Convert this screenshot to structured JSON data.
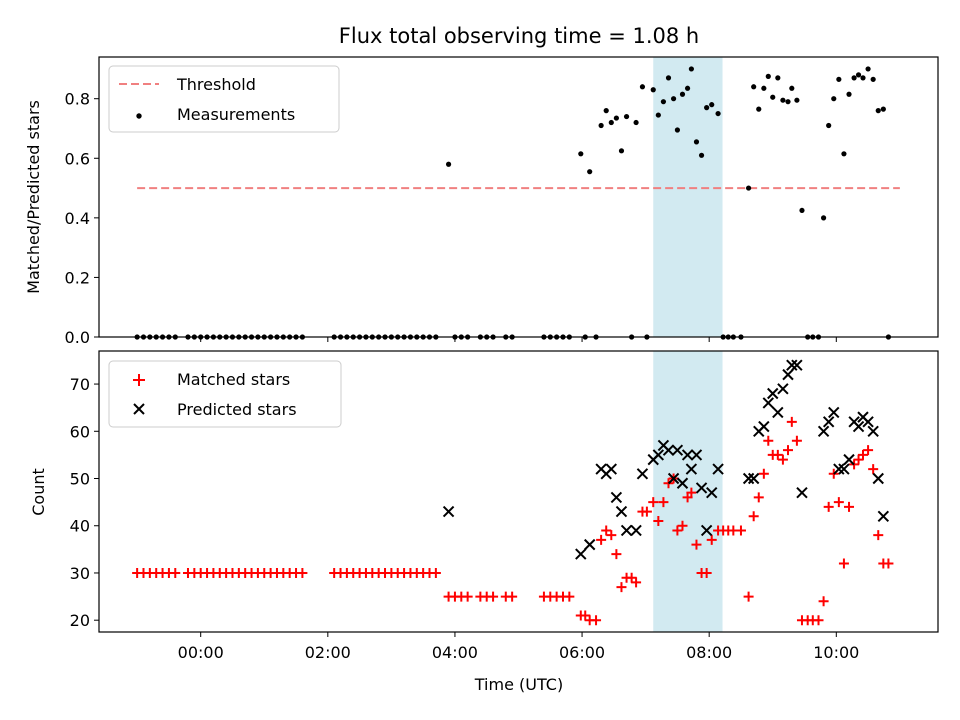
{
  "chart_data": {
    "title": "Flux total observing time = 1.08 h",
    "xlabel": "Time (UTC)",
    "x_unit": "hours UTC",
    "x_ticks": [
      {
        "value": 0,
        "label": "00:00"
      },
      {
        "value": 2,
        "label": "02:00"
      },
      {
        "value": 4,
        "label": "04:00"
      },
      {
        "value": 6,
        "label": "06:00"
      },
      {
        "value": 8,
        "label": "08:00"
      },
      {
        "value": 10,
        "label": "10:00"
      }
    ],
    "xlim": [
      -1.6,
      11.6
    ],
    "shaded_interval": [
      7.12,
      8.21
    ],
    "shaded_color": "#add8e6",
    "top": {
      "type": "scatter",
      "ylabel": "Matched/Predicted stars",
      "ylim": [
        0,
        0.94
      ],
      "y_ticks": [
        {
          "value": 0,
          "label": "0.0"
        },
        {
          "value": 0.2,
          "label": "0.2"
        },
        {
          "value": 0.4,
          "label": "0.4"
        },
        {
          "value": 0.6,
          "label": "0.6"
        },
        {
          "value": 0.8,
          "label": "0.8"
        }
      ],
      "threshold": {
        "name": "Threshold",
        "value": 0.5,
        "x_range": [
          -1.0,
          11.0
        ],
        "color": "#f08080"
      },
      "measurements": {
        "name": "Measurements",
        "color": "#000000",
        "points": [
          [
            -1.0,
            0
          ],
          [
            -0.9,
            0
          ],
          [
            -0.8,
            0
          ],
          [
            -0.7,
            0
          ],
          [
            -0.6,
            0
          ],
          [
            -0.5,
            0
          ],
          [
            -0.4,
            0
          ],
          [
            -0.2,
            0
          ],
          [
            -0.1,
            0
          ],
          [
            0.0,
            0
          ],
          [
            0.1,
            0
          ],
          [
            0.2,
            0
          ],
          [
            0.3,
            0
          ],
          [
            0.4,
            0
          ],
          [
            0.5,
            0
          ],
          [
            0.6,
            0
          ],
          [
            0.7,
            0
          ],
          [
            0.8,
            0
          ],
          [
            0.9,
            0
          ],
          [
            1.0,
            0
          ],
          [
            1.1,
            0
          ],
          [
            1.2,
            0
          ],
          [
            1.3,
            0
          ],
          [
            1.4,
            0
          ],
          [
            1.5,
            0
          ],
          [
            1.6,
            0
          ],
          [
            2.1,
            0
          ],
          [
            2.2,
            0
          ],
          [
            2.3,
            0
          ],
          [
            2.4,
            0
          ],
          [
            2.5,
            0
          ],
          [
            2.6,
            0
          ],
          [
            2.7,
            0
          ],
          [
            2.8,
            0
          ],
          [
            2.9,
            0
          ],
          [
            3.0,
            0
          ],
          [
            3.1,
            0
          ],
          [
            3.2,
            0
          ],
          [
            3.3,
            0
          ],
          [
            3.4,
            0
          ],
          [
            3.5,
            0
          ],
          [
            3.6,
            0
          ],
          [
            3.7,
            0
          ],
          [
            3.9,
            0.58
          ],
          [
            4.0,
            0
          ],
          [
            4.1,
            0
          ],
          [
            4.2,
            0
          ],
          [
            4.4,
            0
          ],
          [
            4.5,
            0
          ],
          [
            4.6,
            0
          ],
          [
            4.8,
            0
          ],
          [
            4.9,
            0
          ],
          [
            5.4,
            0
          ],
          [
            5.5,
            0
          ],
          [
            5.6,
            0
          ],
          [
            5.7,
            0
          ],
          [
            5.8,
            0
          ],
          [
            5.98,
            0.615
          ],
          [
            6.05,
            0
          ],
          [
            6.12,
            0.555
          ],
          [
            6.22,
            0
          ],
          [
            6.3,
            0.71
          ],
          [
            6.38,
            0.76
          ],
          [
            6.46,
            0.72
          ],
          [
            6.54,
            0.735
          ],
          [
            6.62,
            0.625
          ],
          [
            6.7,
            0.74
          ],
          [
            6.78,
            0
          ],
          [
            6.85,
            0.72
          ],
          [
            6.95,
            0.84
          ],
          [
            7.02,
            0
          ],
          [
            7.12,
            0.83
          ],
          [
            7.2,
            0.745
          ],
          [
            7.28,
            0.79
          ],
          [
            7.36,
            0.87
          ],
          [
            7.44,
            0.8
          ],
          [
            7.5,
            0.695
          ],
          [
            7.58,
            0.815
          ],
          [
            7.66,
            0.835
          ],
          [
            7.72,
            0.9
          ],
          [
            7.8,
            0.655
          ],
          [
            7.88,
            0.61
          ],
          [
            7.96,
            0.77
          ],
          [
            8.04,
            0.78
          ],
          [
            8.14,
            0.75
          ],
          [
            8.22,
            0
          ],
          [
            8.3,
            0
          ],
          [
            8.38,
            0
          ],
          [
            8.5,
            0
          ],
          [
            8.62,
            0.5
          ],
          [
            8.7,
            0.84
          ],
          [
            8.78,
            0.765
          ],
          [
            8.86,
            0.835
          ],
          [
            8.93,
            0.875
          ],
          [
            9.0,
            0.805
          ],
          [
            9.08,
            0.87
          ],
          [
            9.16,
            0.795
          ],
          [
            9.24,
            0.79
          ],
          [
            9.3,
            0.835
          ],
          [
            9.38,
            0.795
          ],
          [
            9.46,
            0.425
          ],
          [
            9.55,
            0
          ],
          [
            9.63,
            0
          ],
          [
            9.72,
            0
          ],
          [
            9.8,
            0.4
          ],
          [
            9.88,
            0.71
          ],
          [
            9.96,
            0.8
          ],
          [
            10.04,
            0.865
          ],
          [
            10.12,
            0.615
          ],
          [
            10.2,
            0.815
          ],
          [
            10.28,
            0.87
          ],
          [
            10.35,
            0.88
          ],
          [
            10.42,
            0.87
          ],
          [
            10.5,
            0.9
          ],
          [
            10.58,
            0.865
          ],
          [
            10.66,
            0.76
          ],
          [
            10.74,
            0.765
          ],
          [
            10.82,
            0
          ]
        ]
      }
    },
    "bottom": {
      "type": "scatter",
      "ylabel": "Count",
      "ylim": [
        17.5,
        77
      ],
      "y_ticks": [
        {
          "value": 20,
          "label": "20"
        },
        {
          "value": 30,
          "label": "30"
        },
        {
          "value": 40,
          "label": "40"
        },
        {
          "value": 50,
          "label": "50"
        },
        {
          "value": 60,
          "label": "60"
        },
        {
          "value": 70,
          "label": "70"
        }
      ],
      "matched": {
        "name": "Matched stars",
        "color": "#ff0000",
        "points": [
          [
            -1.0,
            30
          ],
          [
            -0.9,
            30
          ],
          [
            -0.8,
            30
          ],
          [
            -0.7,
            30
          ],
          [
            -0.6,
            30
          ],
          [
            -0.5,
            30
          ],
          [
            -0.4,
            30
          ],
          [
            -0.2,
            30
          ],
          [
            -0.1,
            30
          ],
          [
            0.0,
            30
          ],
          [
            0.1,
            30
          ],
          [
            0.2,
            30
          ],
          [
            0.3,
            30
          ],
          [
            0.4,
            30
          ],
          [
            0.5,
            30
          ],
          [
            0.6,
            30
          ],
          [
            0.7,
            30
          ],
          [
            0.8,
            30
          ],
          [
            0.9,
            30
          ],
          [
            1.0,
            30
          ],
          [
            1.1,
            30
          ],
          [
            1.2,
            30
          ],
          [
            1.3,
            30
          ],
          [
            1.4,
            30
          ],
          [
            1.5,
            30
          ],
          [
            1.6,
            30
          ],
          [
            2.1,
            30
          ],
          [
            2.2,
            30
          ],
          [
            2.3,
            30
          ],
          [
            2.4,
            30
          ],
          [
            2.5,
            30
          ],
          [
            2.6,
            30
          ],
          [
            2.7,
            30
          ],
          [
            2.8,
            30
          ],
          [
            2.9,
            30
          ],
          [
            3.0,
            30
          ],
          [
            3.1,
            30
          ],
          [
            3.2,
            30
          ],
          [
            3.3,
            30
          ],
          [
            3.4,
            30
          ],
          [
            3.5,
            30
          ],
          [
            3.6,
            30
          ],
          [
            3.7,
            30
          ],
          [
            3.9,
            25
          ],
          [
            4.0,
            25
          ],
          [
            4.1,
            25
          ],
          [
            4.2,
            25
          ],
          [
            4.4,
            25
          ],
          [
            4.5,
            25
          ],
          [
            4.6,
            25
          ],
          [
            4.8,
            25
          ],
          [
            4.9,
            25
          ],
          [
            5.4,
            25
          ],
          [
            5.5,
            25
          ],
          [
            5.6,
            25
          ],
          [
            5.7,
            25
          ],
          [
            5.8,
            25
          ],
          [
            5.98,
            21
          ],
          [
            6.05,
            21
          ],
          [
            6.12,
            20
          ],
          [
            6.22,
            20
          ],
          [
            6.3,
            37
          ],
          [
            6.38,
            39
          ],
          [
            6.46,
            38
          ],
          [
            6.54,
            34
          ],
          [
            6.62,
            27
          ],
          [
            6.7,
            29
          ],
          [
            6.78,
            29
          ],
          [
            6.85,
            28
          ],
          [
            6.95,
            43
          ],
          [
            7.02,
            43
          ],
          [
            7.12,
            45
          ],
          [
            7.2,
            41
          ],
          [
            7.28,
            45
          ],
          [
            7.36,
            49
          ],
          [
            7.44,
            50
          ],
          [
            7.5,
            39
          ],
          [
            7.58,
            40
          ],
          [
            7.66,
            46
          ],
          [
            7.72,
            47
          ],
          [
            7.8,
            36
          ],
          [
            7.88,
            30
          ],
          [
            7.96,
            30
          ],
          [
            8.04,
            37
          ],
          [
            8.14,
            39
          ],
          [
            8.22,
            39
          ],
          [
            8.3,
            39
          ],
          [
            8.38,
            39
          ],
          [
            8.5,
            39
          ],
          [
            8.62,
            25
          ],
          [
            8.7,
            42
          ],
          [
            8.78,
            46
          ],
          [
            8.86,
            51
          ],
          [
            8.93,
            58
          ],
          [
            9.0,
            55
          ],
          [
            9.08,
            55
          ],
          [
            9.16,
            54
          ],
          [
            9.24,
            56
          ],
          [
            9.3,
            62
          ],
          [
            9.38,
            58
          ],
          [
            9.46,
            20
          ],
          [
            9.55,
            20
          ],
          [
            9.63,
            20
          ],
          [
            9.72,
            20
          ],
          [
            9.8,
            24
          ],
          [
            9.88,
            44
          ],
          [
            9.96,
            51
          ],
          [
            10.04,
            45
          ],
          [
            10.12,
            32
          ],
          [
            10.2,
            44
          ],
          [
            10.28,
            53
          ],
          [
            10.35,
            54
          ],
          [
            10.42,
            55
          ],
          [
            10.5,
            56
          ],
          [
            10.58,
            52
          ],
          [
            10.66,
            38
          ],
          [
            10.74,
            32
          ],
          [
            10.82,
            32
          ]
        ]
      },
      "predicted": {
        "name": "Predicted stars",
        "color": "#000000",
        "points": [
          [
            3.9,
            43
          ],
          [
            5.98,
            34
          ],
          [
            6.12,
            36
          ],
          [
            6.3,
            52
          ],
          [
            6.38,
            51
          ],
          [
            6.46,
            52
          ],
          [
            6.54,
            46
          ],
          [
            6.62,
            43
          ],
          [
            6.7,
            39
          ],
          [
            6.85,
            39
          ],
          [
            6.95,
            51
          ],
          [
            7.12,
            54
          ],
          [
            7.2,
            55
          ],
          [
            7.28,
            57
          ],
          [
            7.36,
            56
          ],
          [
            7.44,
            50
          ],
          [
            7.5,
            56
          ],
          [
            7.58,
            49
          ],
          [
            7.66,
            55
          ],
          [
            7.72,
            52
          ],
          [
            7.8,
            55
          ],
          [
            7.88,
            48
          ],
          [
            7.96,
            39
          ],
          [
            8.04,
            47
          ],
          [
            8.14,
            52
          ],
          [
            8.62,
            50
          ],
          [
            8.7,
            50
          ],
          [
            8.78,
            60
          ],
          [
            8.86,
            61
          ],
          [
            8.93,
            66
          ],
          [
            9.0,
            68
          ],
          [
            9.08,
            64
          ],
          [
            9.16,
            69
          ],
          [
            9.24,
            72
          ],
          [
            9.3,
            74
          ],
          [
            9.38,
            74
          ],
          [
            9.46,
            47
          ],
          [
            9.8,
            60
          ],
          [
            9.88,
            62
          ],
          [
            9.96,
            64
          ],
          [
            10.04,
            52
          ],
          [
            10.12,
            52
          ],
          [
            10.2,
            54
          ],
          [
            10.28,
            62
          ],
          [
            10.35,
            61
          ],
          [
            10.42,
            63
          ],
          [
            10.5,
            62
          ],
          [
            10.58,
            60
          ],
          [
            10.66,
            50
          ],
          [
            10.74,
            42
          ]
        ]
      }
    }
  }
}
